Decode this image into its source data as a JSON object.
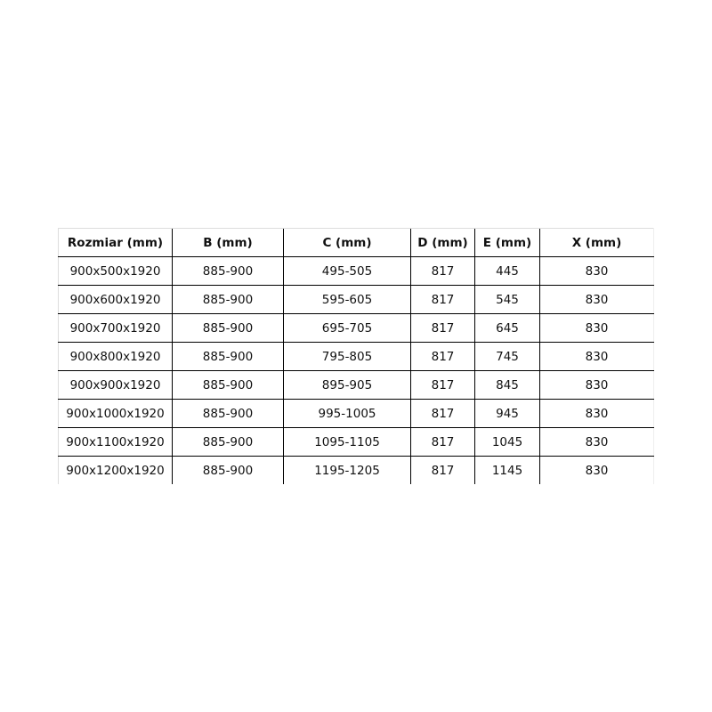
{
  "table": {
    "headers": [
      "Rozmiar (mm)",
      "B (mm)",
      "C (mm)",
      "D (mm)",
      "E (mm)",
      "X (mm)"
    ],
    "rows": [
      [
        "900x500x1920",
        "885-900",
        "495-505",
        "817",
        "445",
        "830"
      ],
      [
        "900x600x1920",
        "885-900",
        "595-605",
        "817",
        "545",
        "830"
      ],
      [
        "900x700x1920",
        "885-900",
        "695-705",
        "817",
        "645",
        "830"
      ],
      [
        "900x800x1920",
        "885-900",
        "795-805",
        "817",
        "745",
        "830"
      ],
      [
        "900x900x1920",
        "885-900",
        "895-905",
        "817",
        "845",
        "830"
      ],
      [
        "900x1000x1920",
        "885-900",
        "995-1005",
        "817",
        "945",
        "830"
      ],
      [
        "900x1100x1920",
        "885-900",
        "1095-1105",
        "817",
        "1045",
        "830"
      ],
      [
        "900x1200x1920",
        "885-900",
        "1195-1205",
        "817",
        "1145",
        "830"
      ]
    ]
  }
}
